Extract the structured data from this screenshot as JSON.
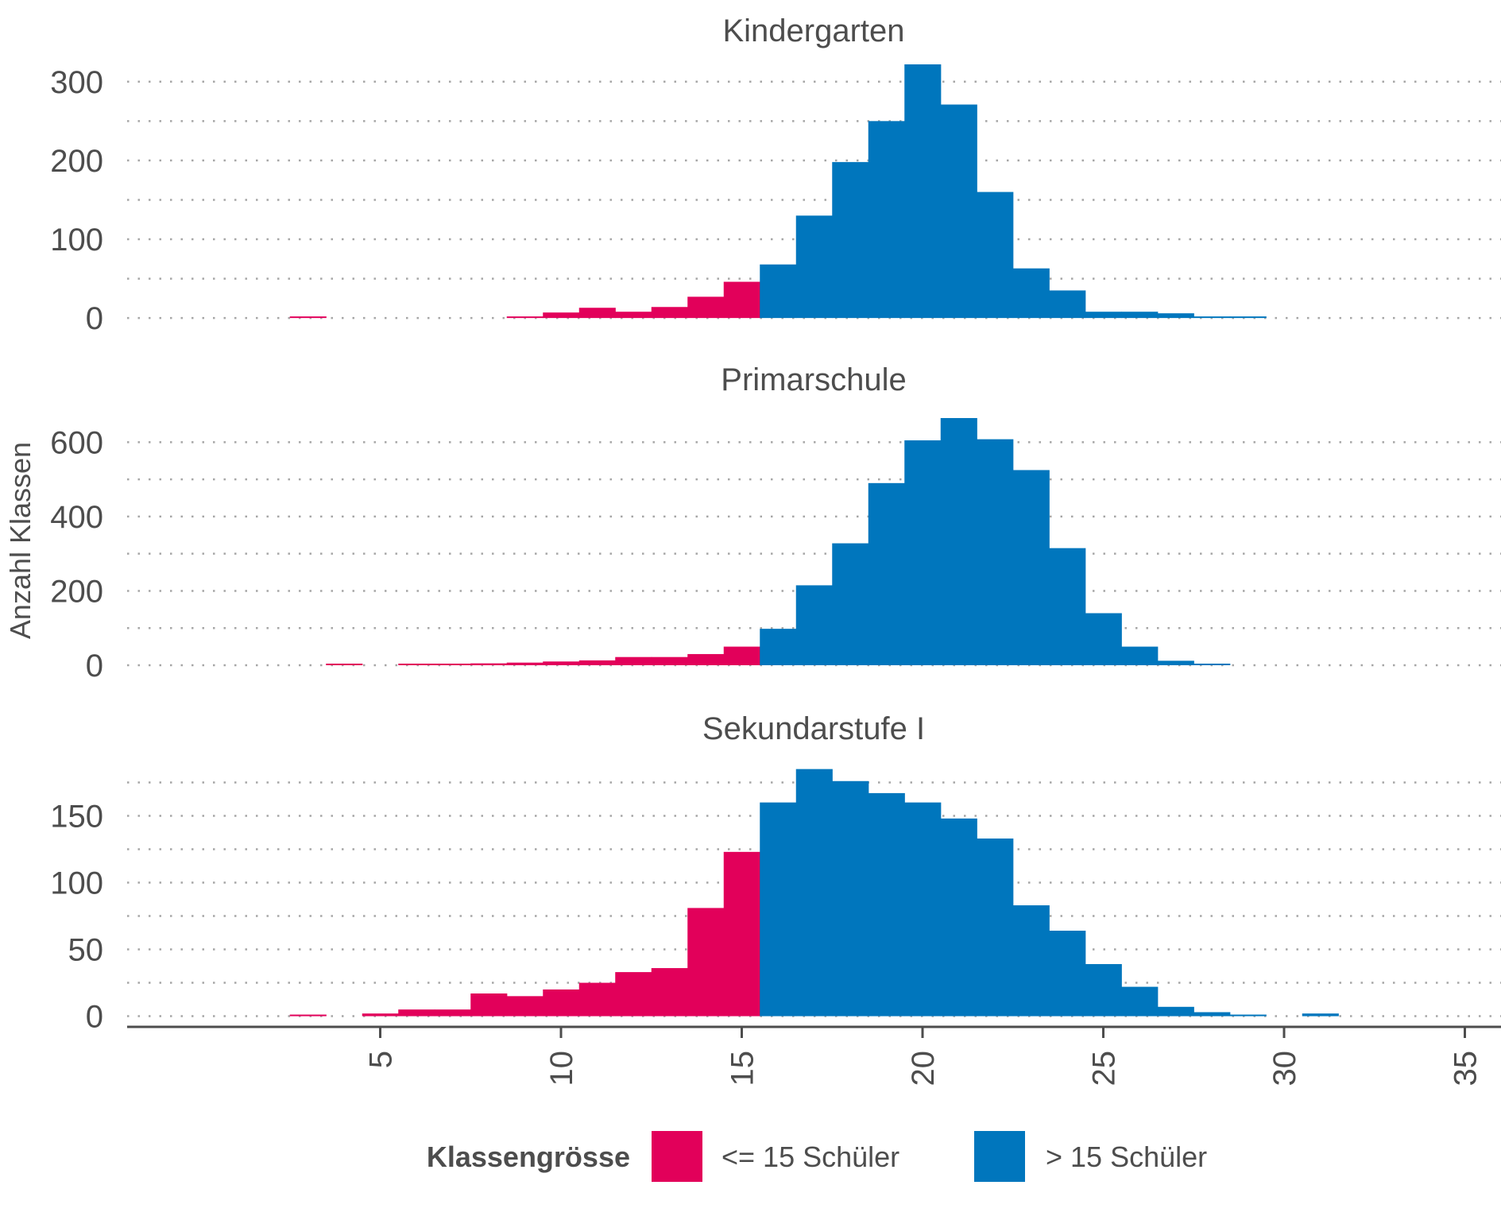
{
  "chart_data": {
    "type": "bar",
    "subtype": "histogram-facets",
    "ylabel": "Anzahl Klassen",
    "xlim": [
      -2,
      36
    ],
    "x_ticks": [
      5,
      10,
      15,
      20,
      25,
      30,
      35
    ],
    "threshold": 15.5,
    "legend": {
      "title": "Klassengrösse",
      "position": "bottom",
      "items": [
        {
          "label": "<= 15 Schüler",
          "color": "#e2005a"
        },
        {
          "label": "> 15 Schüler",
          "color": "#0076bd"
        }
      ]
    },
    "panels": [
      {
        "title": "Kindergarten",
        "ylim": [
          -15,
          325
        ],
        "y_ticks": [
          0,
          100,
          200,
          300
        ],
        "bins": [
          {
            "x": 3,
            "y": 1
          },
          {
            "x": 9,
            "y": 1
          },
          {
            "x": 10,
            "y": 7
          },
          {
            "x": 11,
            "y": 13
          },
          {
            "x": 12,
            "y": 8
          },
          {
            "x": 13,
            "y": 14
          },
          {
            "x": 14,
            "y": 27
          },
          {
            "x": 15,
            "y": 46
          },
          {
            "x": 16,
            "y": 68
          },
          {
            "x": 17,
            "y": 130
          },
          {
            "x": 18,
            "y": 198
          },
          {
            "x": 19,
            "y": 250
          },
          {
            "x": 20,
            "y": 322
          },
          {
            "x": 21,
            "y": 271
          },
          {
            "x": 22,
            "y": 160
          },
          {
            "x": 23,
            "y": 63
          },
          {
            "x": 24,
            "y": 35
          },
          {
            "x": 25,
            "y": 8
          },
          {
            "x": 26,
            "y": 8
          },
          {
            "x": 27,
            "y": 6
          },
          {
            "x": 28,
            "y": 1
          },
          {
            "x": 29,
            "y": 1
          }
        ]
      },
      {
        "title": "Primarschule",
        "ylim": [
          -30,
          650
        ],
        "y_ticks": [
          0,
          200,
          400,
          600
        ],
        "bins": [
          {
            "x": 4,
            "y": 1
          },
          {
            "x": 6,
            "y": 2
          },
          {
            "x": 7,
            "y": 4
          },
          {
            "x": 8,
            "y": 5
          },
          {
            "x": 9,
            "y": 7
          },
          {
            "x": 10,
            "y": 10
          },
          {
            "x": 11,
            "y": 13
          },
          {
            "x": 12,
            "y": 22
          },
          {
            "x": 13,
            "y": 22
          },
          {
            "x": 14,
            "y": 30
          },
          {
            "x": 15,
            "y": 50
          },
          {
            "x": 16,
            "y": 98
          },
          {
            "x": 17,
            "y": 215
          },
          {
            "x": 18,
            "y": 328
          },
          {
            "x": 19,
            "y": 490
          },
          {
            "x": 20,
            "y": 605
          },
          {
            "x": 21,
            "y": 665
          },
          {
            "x": 22,
            "y": 608
          },
          {
            "x": 23,
            "y": 525
          },
          {
            "x": 24,
            "y": 315
          },
          {
            "x": 25,
            "y": 140
          },
          {
            "x": 26,
            "y": 50
          },
          {
            "x": 27,
            "y": 12
          },
          {
            "x": 28,
            "y": 2
          }
        ]
      },
      {
        "title": "Sekundarstufe I",
        "ylim": [
          -8,
          183
        ],
        "y_ticks": [
          0,
          50,
          100,
          150
        ],
        "bins": [
          {
            "x": 3,
            "y": 1
          },
          {
            "x": 5,
            "y": 2
          },
          {
            "x": 6,
            "y": 5
          },
          {
            "x": 7,
            "y": 5
          },
          {
            "x": 8,
            "y": 17
          },
          {
            "x": 9,
            "y": 15
          },
          {
            "x": 10,
            "y": 20
          },
          {
            "x": 11,
            "y": 25
          },
          {
            "x": 12,
            "y": 33
          },
          {
            "x": 13,
            "y": 36
          },
          {
            "x": 14,
            "y": 81
          },
          {
            "x": 15,
            "y": 123
          },
          {
            "x": 16,
            "y": 160
          },
          {
            "x": 17,
            "y": 185
          },
          {
            "x": 18,
            "y": 176
          },
          {
            "x": 19,
            "y": 167
          },
          {
            "x": 20,
            "y": 160
          },
          {
            "x": 21,
            "y": 148
          },
          {
            "x": 22,
            "y": 133
          },
          {
            "x": 23,
            "y": 83
          },
          {
            "x": 24,
            "y": 64
          },
          {
            "x": 25,
            "y": 39
          },
          {
            "x": 26,
            "y": 22
          },
          {
            "x": 27,
            "y": 7
          },
          {
            "x": 28,
            "y": 3
          },
          {
            "x": 29,
            "y": 1
          },
          {
            "x": 31,
            "y": 2
          }
        ]
      }
    ]
  }
}
